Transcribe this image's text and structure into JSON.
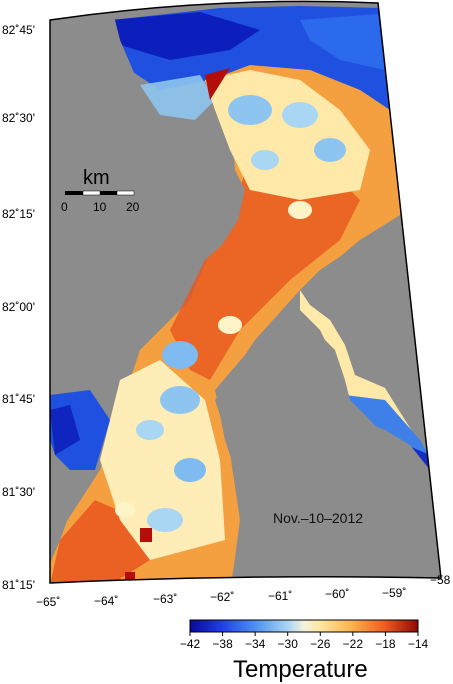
{
  "map": {
    "date_label": "Nov.–10–2012",
    "lat_labels": [
      "82˚45'",
      "82˚30'",
      "82˚15'",
      "82˚00'",
      "81˚45'",
      "81˚30'",
      "81˚15'"
    ],
    "lon_labels": [
      "−65˚",
      "−64˚",
      "−63˚",
      "−62˚",
      "−61˚",
      "−60˚",
      "−59˚",
      "−58"
    ]
  },
  "scale_bar": {
    "unit": "km",
    "ticks": [
      "0",
      "10",
      "20"
    ]
  },
  "colorbar": {
    "title": "Temperature",
    "ticks": [
      "−42",
      "−38",
      "−34",
      "−30",
      "−26",
      "−22",
      "−18",
      "−14"
    ],
    "colors": [
      "#0b1fd6",
      "#2d67f0",
      "#6fa9f2",
      "#d9ecf2",
      "#fff2b4",
      "#fbb34f",
      "#e8531e",
      "#b30e0a"
    ]
  },
  "colors": {
    "land": "#8c8c8c",
    "cold": "#1f3fd8",
    "warm": "#e5501d"
  }
}
